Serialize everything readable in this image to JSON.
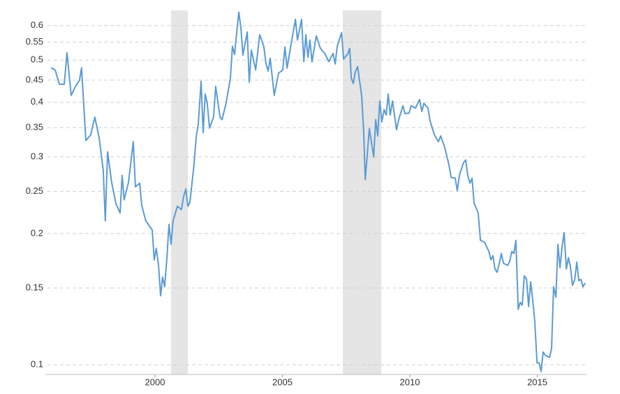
{
  "chart_data": {
    "type": "line",
    "log_scale": true,
    "grid": true,
    "x": [
      1995.92,
      1996.08,
      1996.25,
      1996.44,
      1996.55,
      1996.71,
      1996.88,
      1997.04,
      1997.12,
      1997.29,
      1997.48,
      1997.64,
      1997.81,
      1997.97,
      1998.05,
      1998.14,
      1998.3,
      1998.47,
      1998.63,
      1998.71,
      1998.79,
      1998.96,
      1999.15,
      1999.23,
      1999.4,
      1999.48,
      1999.64,
      1999.81,
      1999.89,
      1999.97,
      2000.05,
      2000.14,
      2000.22,
      2000.3,
      2000.38,
      2000.47,
      2000.55,
      2000.63,
      2000.71,
      2000.88,
      2001.04,
      2001.12,
      2001.21,
      2001.29,
      2001.37,
      2001.53,
      2001.62,
      2001.7,
      2001.81,
      2001.89,
      2001.97,
      2002.05,
      2002.14,
      2002.3,
      2002.38,
      2002.55,
      2002.63,
      2002.79,
      2002.96,
      2003.04,
      2003.12,
      2003.21,
      2003.29,
      2003.37,
      2003.45,
      2003.62,
      2003.7,
      2003.78,
      2003.95,
      2004.11,
      2004.27,
      2004.36,
      2004.44,
      2004.52,
      2004.68,
      2004.85,
      2005.01,
      2005.1,
      2005.18,
      2005.34,
      2005.51,
      2005.59,
      2005.75,
      2005.84,
      2005.92,
      2006.0,
      2006.08,
      2006.16,
      2006.33,
      2006.49,
      2006.66,
      2006.82,
      2006.99,
      2007.07,
      2007.15,
      2007.32,
      2007.4,
      2007.56,
      2007.64,
      2007.7,
      2007.78,
      2007.86,
      2007.95,
      2008.11,
      2008.19,
      2008.25,
      2008.41,
      2008.58,
      2008.66,
      2008.74,
      2008.82,
      2008.9,
      2008.99,
      2009.07,
      2009.15,
      2009.23,
      2009.32,
      2009.48,
      2009.56,
      2009.73,
      2009.81,
      2009.97,
      2010.05,
      2010.22,
      2010.38,
      2010.47,
      2010.55,
      2010.71,
      2010.79,
      2010.96,
      2011.12,
      2011.21,
      2011.37,
      2011.53,
      2011.62,
      2011.78,
      2011.86,
      2011.95,
      2012.11,
      2012.19,
      2012.27,
      2012.36,
      2012.44,
      2012.52,
      2012.68,
      2012.77,
      2012.93,
      2013.1,
      2013.18,
      2013.26,
      2013.34,
      2013.42,
      2013.51,
      2013.59,
      2013.67,
      2013.84,
      2013.92,
      2014.0,
      2014.08,
      2014.16,
      2014.25,
      2014.33,
      2014.41,
      2014.49,
      2014.58,
      2014.66,
      2014.74,
      2014.82,
      2014.9,
      2014.99,
      2015.07,
      2015.15,
      2015.23,
      2015.32,
      2015.48,
      2015.56,
      2015.64,
      2015.73,
      2015.81,
      2015.89,
      2015.97,
      2016.05,
      2016.14,
      2016.22,
      2016.3,
      2016.38,
      2016.47,
      2016.55,
      2016.63,
      2016.71,
      2016.79,
      2016.88
    ],
    "series": [
      {
        "color": "#5b9bd5",
        "values": [
          0.48,
          0.475,
          0.44,
          0.44,
          0.52,
          0.415,
          0.435,
          0.45,
          0.48,
          0.327,
          0.337,
          0.37,
          0.332,
          0.279,
          0.214,
          0.308,
          0.262,
          0.234,
          0.223,
          0.272,
          0.239,
          0.262,
          0.325,
          0.256,
          0.261,
          0.232,
          0.214,
          0.207,
          0.204,
          0.174,
          0.185,
          0.169,
          0.144,
          0.159,
          0.151,
          0.176,
          0.21,
          0.189,
          0.214,
          0.231,
          0.227,
          0.243,
          0.253,
          0.231,
          0.236,
          0.287,
          0.334,
          0.357,
          0.447,
          0.341,
          0.418,
          0.398,
          0.349,
          0.37,
          0.435,
          0.37,
          0.365,
          0.398,
          0.455,
          0.538,
          0.515,
          0.582,
          0.644,
          0.593,
          0.513,
          0.58,
          0.445,
          0.527,
          0.475,
          0.572,
          0.538,
          0.49,
          0.472,
          0.505,
          0.415,
          0.467,
          0.474,
          0.536,
          0.479,
          0.544,
          0.62,
          0.556,
          0.62,
          0.496,
          0.572,
          0.507,
          0.556,
          0.495,
          0.568,
          0.532,
          0.518,
          0.496,
          0.518,
          0.49,
          0.538,
          0.578,
          0.503,
          0.516,
          0.532,
          0.455,
          0.442,
          0.47,
          0.483,
          0.414,
          0.343,
          0.266,
          0.348,
          0.3,
          0.365,
          0.335,
          0.403,
          0.361,
          0.385,
          0.374,
          0.418,
          0.374,
          0.403,
          0.346,
          0.365,
          0.393,
          0.377,
          0.378,
          0.393,
          0.388,
          0.406,
          0.381,
          0.398,
          0.388,
          0.363,
          0.337,
          0.325,
          0.335,
          0.315,
          0.288,
          0.269,
          0.268,
          0.251,
          0.273,
          0.291,
          0.295,
          0.272,
          0.261,
          0.268,
          0.235,
          0.223,
          0.193,
          0.191,
          0.182,
          0.174,
          0.178,
          0.166,
          0.163,
          0.171,
          0.18,
          0.171,
          0.169,
          0.173,
          0.182,
          0.18,
          0.193,
          0.134,
          0.139,
          0.137,
          0.16,
          0.157,
          0.136,
          0.155,
          0.141,
          0.126,
          0.101,
          0.101,
          0.0965,
          0.107,
          0.105,
          0.104,
          0.109,
          0.151,
          0.143,
          0.189,
          0.167,
          0.186,
          0.201,
          0.166,
          0.176,
          0.168,
          0.152,
          0.157,
          0.172,
          0.156,
          0.157,
          0.151,
          0.154
        ]
      }
    ],
    "shaded_ranges": [
      [
        2000.63,
        2001.29
      ],
      [
        2007.37,
        2008.88
      ]
    ],
    "shade_color": "#e5e5e5",
    "xlim": [
      1995.7,
      2016.93
    ],
    "xticks": [
      2000,
      2005,
      2010,
      2015
    ],
    "ylim": [
      0.095,
      0.65
    ],
    "yticks": [
      0.1,
      0.15,
      0.2,
      0.25,
      0.3,
      0.35,
      0.4,
      0.45,
      0.5,
      0.55,
      0.6
    ]
  }
}
